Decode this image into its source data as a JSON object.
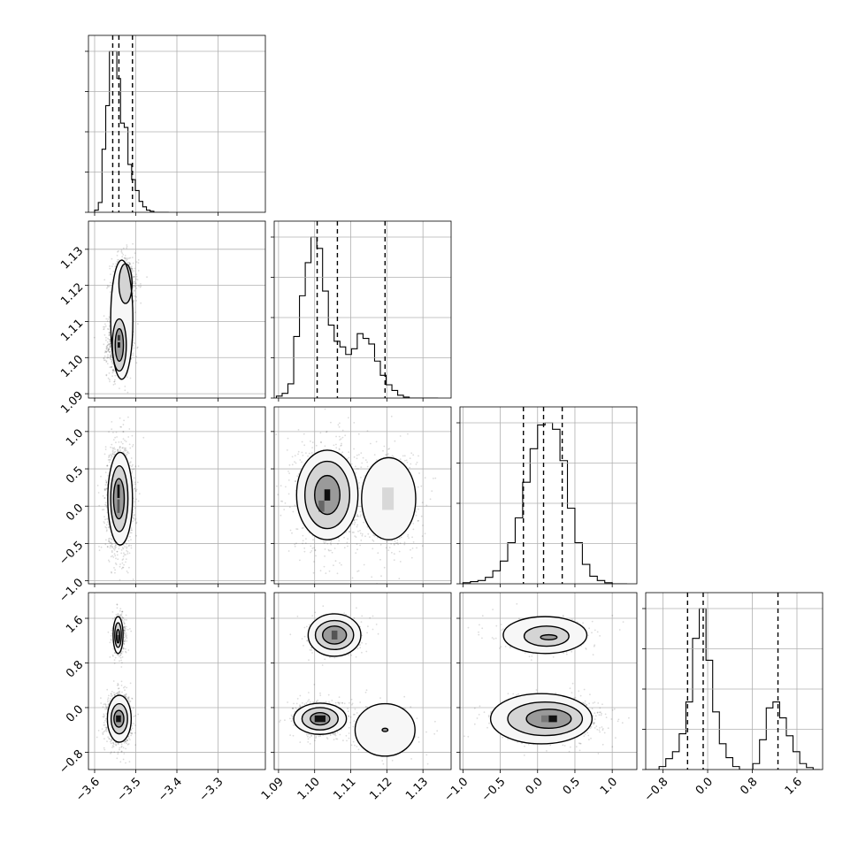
{
  "chart_data": {
    "type": "corner",
    "title": "",
    "parameters": [
      {
        "index": 0,
        "axis_label": "",
        "range": [
          -3.615,
          -3.185
        ],
        "ticks": [
          -3.6,
          -3.5,
          -3.4,
          -3.3
        ],
        "tick_labels": [
          "−3.6",
          "−3.5",
          "−3.4",
          "−3.3"
        ],
        "quantiles": [
          -3.556,
          -3.541,
          -3.508
        ]
      },
      {
        "index": 1,
        "axis_label": "",
        "range": [
          1.0888,
          1.1378
        ],
        "ticks": [
          1.09,
          1.1,
          1.11,
          1.12,
          1.13
        ],
        "tick_labels": [
          "1.09",
          "1.10",
          "1.11",
          "1.12",
          "1.13"
        ],
        "quantiles": [
          1.1007,
          1.1063,
          1.1195
        ]
      },
      {
        "index": 2,
        "axis_label": "",
        "range": [
          -1.04,
          1.33
        ],
        "ticks": [
          -1.0,
          -0.5,
          0.0,
          0.5,
          1.0
        ],
        "tick_labels": [
          "−1.0",
          "−0.5",
          "0.0",
          "0.5",
          "1.0"
        ],
        "quantiles": [
          -0.19,
          0.08,
          0.33
        ]
      },
      {
        "index": 3,
        "axis_label": "",
        "range": [
          -1.11,
          2.06
        ],
        "ticks": [
          -0.8,
          0.0,
          0.8,
          1.6
        ],
        "tick_labels": [
          "−0.8",
          "0.0",
          "0.8",
          "1.6"
        ],
        "quantiles": [
          -0.36,
          -0.08,
          1.26
        ]
      }
    ],
    "histograms": [
      {
        "param": 0,
        "bin_edges": [
          -3.6,
          -3.591,
          -3.582,
          -3.573,
          -3.564,
          -3.555,
          -3.546,
          -3.537,
          -3.528,
          -3.519,
          -3.51,
          -3.501,
          -3.492,
          -3.483,
          -3.474,
          -3.465,
          -3.456,
          -3.447,
          -3.438,
          -3.429,
          -3.42
        ],
        "counts": [
          2,
          9,
          58,
          98,
          148,
          148,
          123,
          82,
          78,
          44,
          30,
          20,
          10,
          5,
          2,
          1,
          0,
          0,
          0,
          0
        ]
      },
      {
        "param": 1,
        "bin_edges": [
          1.0894,
          1.091,
          1.0926,
          1.0942,
          1.0958,
          1.0974,
          1.099,
          1.1006,
          1.1022,
          1.1038,
          1.1054,
          1.107,
          1.1086,
          1.1102,
          1.1118,
          1.1134,
          1.115,
          1.1166,
          1.1182,
          1.1198,
          1.1214,
          1.123,
          1.1246,
          1.1262,
          1.1278,
          1.1294,
          1.131,
          1.1326,
          1.1342
        ],
        "counts": [
          2,
          5,
          15,
          65,
          108,
          143,
          170,
          158,
          113,
          77,
          60,
          54,
          46,
          52,
          68,
          63,
          57,
          39,
          24,
          14,
          8,
          3,
          1,
          0,
          0,
          0,
          0,
          0
        ]
      },
      {
        "param": 2,
        "bin_edges": [
          -1.0,
          -0.9,
          -0.8,
          -0.7,
          -0.6,
          -0.5,
          -0.4,
          -0.3,
          -0.2,
          -0.1,
          0.0,
          0.1,
          0.2,
          0.3,
          0.4,
          0.5,
          0.6,
          0.7,
          0.8,
          0.9,
          1.0,
          1.1,
          1.2
        ],
        "counts": [
          1,
          2,
          3,
          6,
          12,
          21,
          38,
          61,
          94,
          125,
          147,
          149,
          143,
          114,
          70,
          38,
          18,
          7,
          3,
          1,
          0,
          0
        ]
      },
      {
        "param": 3,
        "bin_edges": [
          -1.11,
          -0.99,
          -0.87,
          -0.75,
          -0.63,
          -0.51,
          -0.39,
          -0.27,
          -0.15,
          -0.03,
          0.09,
          0.21,
          0.33,
          0.45,
          0.57,
          0.69,
          0.81,
          0.93,
          1.05,
          1.17,
          1.29,
          1.41,
          1.53,
          1.65,
          1.77,
          1.89,
          2.01
        ],
        "counts": [
          0,
          0,
          3,
          11,
          18,
          36,
          68,
          132,
          162,
          110,
          58,
          26,
          12,
          3,
          0,
          0,
          6,
          30,
          62,
          68,
          52,
          34,
          18,
          6,
          2,
          0
        ]
      }
    ],
    "pairs": [
      {
        "x_param": 0,
        "y_param": 1,
        "modes": [
          {
            "cx": -3.54,
            "cy": 1.1035,
            "sx": 0.012,
            "sy": 0.0035,
            "weight": 0.68
          },
          {
            "cx": -3.525,
            "cy": 1.1205,
            "sx": 0.013,
            "sy": 0.0034,
            "weight": 0.32
          }
        ],
        "contour_levels": [
          [
            {
              "cx": -3.534,
              "cy": 1.1105,
              "rx": 0.027,
              "ry": 0.0165
            }
          ],
          [
            {
              "cx": -3.54,
              "cy": 1.1035,
              "rx": 0.017,
              "ry": 0.0072
            },
            {
              "cx": -3.525,
              "cy": 1.1205,
              "rx": 0.016,
              "ry": 0.0055
            }
          ],
          [
            {
              "cx": -3.54,
              "cy": 1.1035,
              "rx": 0.01,
              "ry": 0.0045
            }
          ]
        ],
        "density_cells": [
          {
            "cx": -3.541,
            "cy": 1.1035,
            "w": 0.006,
            "h": 0.0015,
            "shade": "#111111"
          },
          {
            "cx": -3.541,
            "cy": 1.1055,
            "w": 0.006,
            "h": 0.0015,
            "shade": "#333333"
          }
        ]
      },
      {
        "x_param": 0,
        "y_param": 2,
        "modes": [
          {
            "cx": -3.54,
            "cy": 0.1,
            "sx": 0.013,
            "sy": 0.3,
            "weight": 1.0
          }
        ],
        "contour_levels": [
          [
            {
              "cx": -3.538,
              "cy": 0.1,
              "rx": 0.03,
              "ry": 0.62
            }
          ],
          [
            {
              "cx": -3.54,
              "cy": 0.1,
              "rx": 0.021,
              "ry": 0.44
            }
          ],
          [
            {
              "cx": -3.541,
              "cy": 0.1,
              "rx": 0.013,
              "ry": 0.27
            }
          ]
        ],
        "density_cells": [
          {
            "cx": -3.542,
            "cy": 0.2,
            "w": 0.006,
            "h": 0.18,
            "shade": "#111111"
          },
          {
            "cx": -3.542,
            "cy": 0.0,
            "w": 0.006,
            "h": 0.18,
            "shade": "#555555"
          }
        ]
      },
      {
        "x_param": 0,
        "y_param": 3,
        "modes": [
          {
            "cx": -3.54,
            "cy": -0.2,
            "sx": 0.012,
            "sy": 0.18,
            "weight": 0.72
          },
          {
            "cx": -3.54,
            "cy": 1.3,
            "sx": 0.007,
            "sy": 0.16,
            "weight": 0.28
          }
        ],
        "contour_levels": [
          [
            {
              "cx": -3.54,
              "cy": -0.2,
              "rx": 0.029,
              "ry": 0.42
            },
            {
              "cx": -3.543,
              "cy": 1.3,
              "rx": 0.012,
              "ry": 0.33
            }
          ],
          [
            {
              "cx": -3.54,
              "cy": -0.2,
              "rx": 0.02,
              "ry": 0.27
            },
            {
              "cx": -3.543,
              "cy": 1.3,
              "rx": 0.008,
              "ry": 0.22
            }
          ],
          [
            {
              "cx": -3.541,
              "cy": -0.2,
              "rx": 0.012,
              "ry": 0.15
            },
            {
              "cx": -3.543,
              "cy": 1.28,
              "rx": 0.004,
              "ry": 0.12
            }
          ]
        ],
        "density_cells": [
          {
            "cx": -3.542,
            "cy": -0.2,
            "w": 0.012,
            "h": 0.12,
            "shade": "#111111"
          },
          {
            "cx": -3.543,
            "cy": 1.24,
            "w": 0.005,
            "h": 0.12,
            "shade": "#444444"
          }
        ]
      },
      {
        "x_param": 1,
        "y_param": 2,
        "modes": [
          {
            "cx": 1.1035,
            "cy": 0.15,
            "sx": 0.0035,
            "sy": 0.3,
            "weight": 0.68
          },
          {
            "cx": 1.1205,
            "cy": 0.1,
            "sx": 0.0035,
            "sy": 0.3,
            "weight": 0.32
          }
        ],
        "contour_levels": [
          [
            {
              "cx": 1.1035,
              "cy": 0.15,
              "rx": 0.0085,
              "ry": 0.6
            },
            {
              "cx": 1.1205,
              "cy": 0.1,
              "rx": 0.0075,
              "ry": 0.55
            }
          ],
          [
            {
              "cx": 1.1035,
              "cy": 0.15,
              "rx": 0.0062,
              "ry": 0.45
            }
          ],
          [
            {
              "cx": 1.1035,
              "cy": 0.15,
              "rx": 0.0035,
              "ry": 0.26
            }
          ]
        ],
        "density_cells": [
          {
            "cx": 1.1035,
            "cy": 0.15,
            "w": 0.0016,
            "h": 0.15,
            "shade": "#111111"
          },
          {
            "cx": 1.1019,
            "cy": 0.0,
            "w": 0.0016,
            "h": 0.15,
            "shade": "#666666"
          },
          {
            "cx": 1.1203,
            "cy": 0.1,
            "w": 0.0032,
            "h": 0.3,
            "shade": "#d8d8d8"
          }
        ]
      },
      {
        "x_param": 1,
        "y_param": 3,
        "modes": [
          {
            "cx": 1.1015,
            "cy": -0.2,
            "sx": 0.003,
            "sy": 0.13,
            "weight": 0.5
          },
          {
            "cx": 1.1195,
            "cy": -0.4,
            "sx": 0.0035,
            "sy": 0.17,
            "weight": 0.22
          },
          {
            "cx": 1.1055,
            "cy": 1.3,
            "sx": 0.003,
            "sy": 0.14,
            "weight": 0.28
          }
        ],
        "contour_levels": [
          [
            {
              "cx": 1.1015,
              "cy": -0.2,
              "rx": 0.0073,
              "ry": 0.28
            },
            {
              "cx": 1.1195,
              "cy": -0.4,
              "rx": 0.0083,
              "ry": 0.47
            },
            {
              "cx": 1.1055,
              "cy": 1.3,
              "rx": 0.0073,
              "ry": 0.38
            }
          ],
          [
            {
              "cx": 1.1015,
              "cy": -0.2,
              "rx": 0.005,
              "ry": 0.2
            },
            {
              "cx": 1.1055,
              "cy": 1.3,
              "rx": 0.0053,
              "ry": 0.26
            }
          ],
          [
            {
              "cx": 1.1015,
              "cy": -0.2,
              "rx": 0.0027,
              "ry": 0.11
            },
            {
              "cx": 1.1055,
              "cy": 1.3,
              "rx": 0.0033,
              "ry": 0.16
            },
            {
              "cx": 1.1195,
              "cy": -0.4,
              "rx": 0.0008,
              "ry": 0.03
            }
          ]
        ],
        "density_cells": [
          {
            "cx": 1.1015,
            "cy": -0.2,
            "w": 0.003,
            "h": 0.12,
            "shade": "#111111"
          },
          {
            "cx": 1.1055,
            "cy": 1.3,
            "w": 0.0016,
            "h": 0.16,
            "shade": "#555555"
          }
        ]
      },
      {
        "x_param": 2,
        "y_param": 3,
        "modes": [
          {
            "cx": 0.15,
            "cy": -0.2,
            "sx": 0.28,
            "sy": 0.16,
            "weight": 0.72
          },
          {
            "cx": 0.1,
            "cy": 1.28,
            "sx": 0.26,
            "sy": 0.12,
            "weight": 0.28
          }
        ],
        "contour_levels": [
          [
            {
              "cx": 0.05,
              "cy": -0.2,
              "rx": 0.68,
              "ry": 0.45
            },
            {
              "cx": 0.1,
              "cy": 1.3,
              "rx": 0.56,
              "ry": 0.33
            }
          ],
          [
            {
              "cx": 0.1,
              "cy": -0.2,
              "rx": 0.5,
              "ry": 0.3
            },
            {
              "cx": 0.12,
              "cy": 1.28,
              "rx": 0.3,
              "ry": 0.18
            }
          ],
          [
            {
              "cx": 0.15,
              "cy": -0.2,
              "rx": 0.3,
              "ry": 0.17
            },
            {
              "cx": 0.15,
              "cy": 1.26,
              "rx": 0.11,
              "ry": 0.045
            }
          ]
        ],
        "density_cells": [
          {
            "cx": 0.2,
            "cy": -0.2,
            "w": 0.12,
            "h": 0.12,
            "shade": "#111111"
          },
          {
            "cx": 0.1,
            "cy": -0.2,
            "w": 0.1,
            "h": 0.12,
            "shade": "#777777"
          }
        ]
      }
    ],
    "grid": true,
    "show_quantiles": [
      0.16,
      0.5,
      0.84
    ]
  }
}
